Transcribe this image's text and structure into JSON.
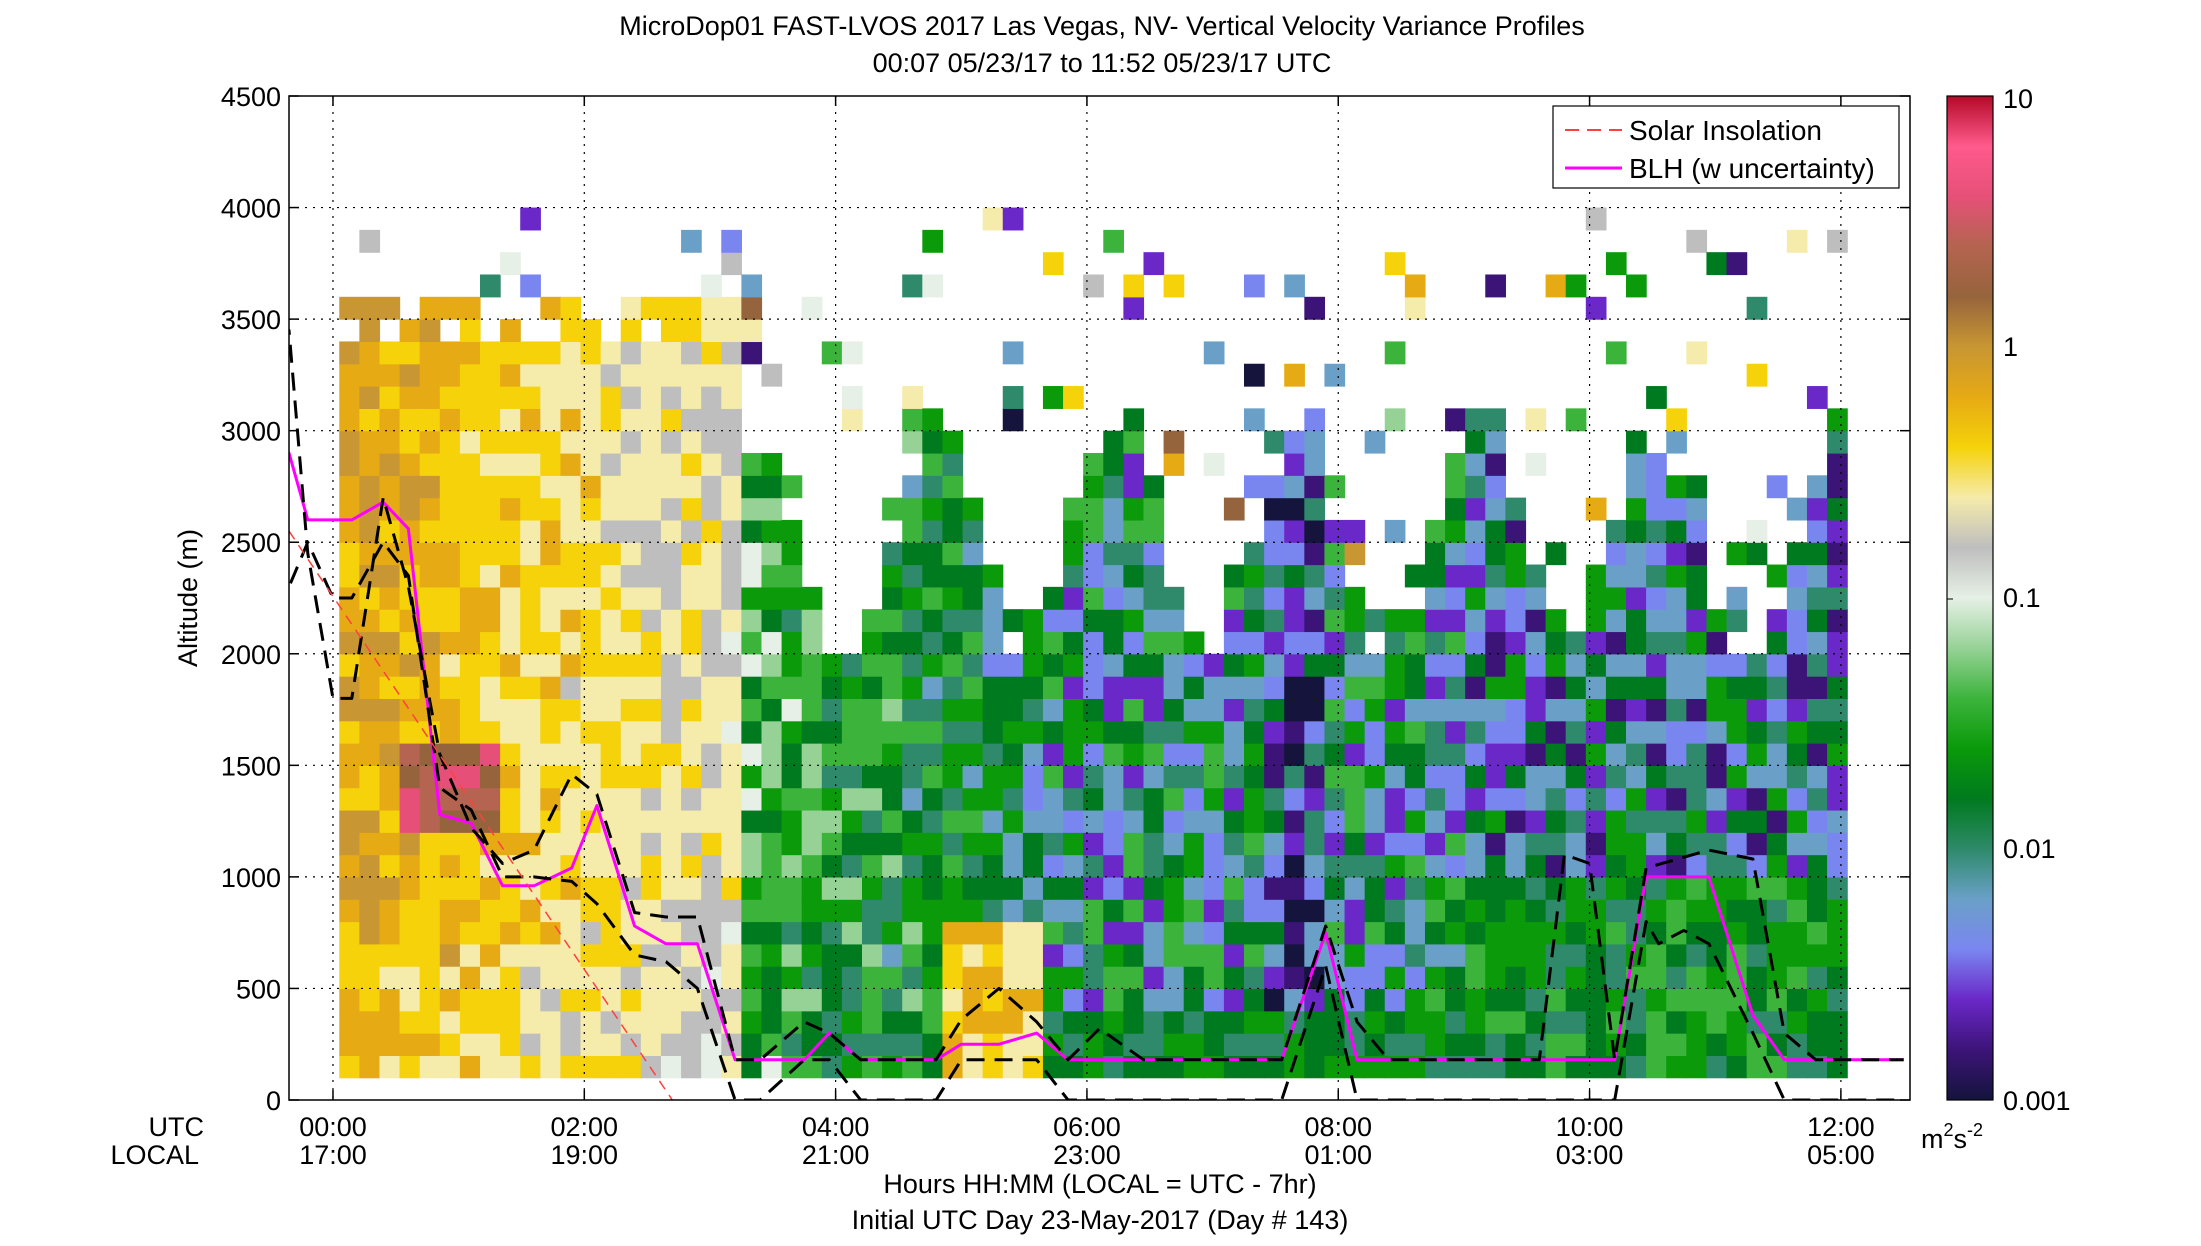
{
  "chart_data": {
    "type": "heatmap",
    "title": "MicroDop01 FAST-LVOS 2017 Las Vegas, NV- Vertical Velocity Variance Profiles",
    "subtitle": "00:07 05/23/17 to 11:52 05/23/17  UTC",
    "ylabel": "Altitude (m)",
    "xlabel": "Hours HH:MM  (LOCAL = UTC - 7hr)",
    "xlabel2": "Initial UTC Day 23-May-2017 (Day # 143)",
    "x_row_labels": [
      "UTC",
      "LOCAL"
    ],
    "xlim_hours": [
      -0.35,
      12.55
    ],
    "ylim": [
      0,
      4500
    ],
    "grid": true,
    "x_ticks": [
      {
        "h": 0,
        "utc": "00:00",
        "local": "17:00"
      },
      {
        "h": 2,
        "utc": "02:00",
        "local": "19:00"
      },
      {
        "h": 4,
        "utc": "04:00",
        "local": "21:00"
      },
      {
        "h": 6,
        "utc": "06:00",
        "local": "23:00"
      },
      {
        "h": 8,
        "utc": "08:00",
        "local": "01:00"
      },
      {
        "h": 10,
        "utc": "10:00",
        "local": "03:00"
      },
      {
        "h": 12,
        "utc": "12:00",
        "local": "05:00"
      }
    ],
    "y_ticks": [
      0,
      500,
      1000,
      1500,
      2000,
      2500,
      3000,
      3500,
      4000,
      4500
    ],
    "colorbar": {
      "scale": "log",
      "range": [
        0.001,
        10
      ],
      "ticks": [
        "0.001",
        "0.01",
        "0.1",
        "1",
        "10"
      ],
      "unit": "m2s-2",
      "unit_parts": [
        "m",
        "2",
        "s",
        "-2"
      ],
      "colors": [
        "#14143c",
        "#3c1478",
        "#6a28c8",
        "#7a86f0",
        "#6aa0c8",
        "#2e8a6a",
        "#007a1e",
        "#0a9a0a",
        "#3cb43c",
        "#96d296",
        "#e6f0e6",
        "#bebebe",
        "#f5ebaa",
        "#f5d20a",
        "#e6aa14",
        "#c89632",
        "#96643c",
        "#b46450",
        "#e65078",
        "#ff5a8c",
        "#b40a28"
      ]
    },
    "time_step_hours": 0.16,
    "alt_step_m": 100,
    "legend": {
      "placement": "top-right",
      "entries": [
        {
          "label": "Solar Insolation",
          "color": "#ff4040",
          "style": "dashed"
        },
        {
          "label": "BLH (w uncertainty)",
          "color": "#ff00ff",
          "style": "solid"
        }
      ]
    },
    "series": [
      {
        "name": "BLH (w uncertainty)",
        "color": "#ff00ff",
        "x": [
          -0.5,
          -0.35,
          -0.2,
          0.0,
          0.15,
          0.4,
          0.6,
          0.85,
          1.1,
          1.35,
          1.6,
          1.9,
          2.1,
          2.4,
          2.65,
          2.9,
          3.2,
          3.4,
          3.75,
          3.95,
          4.2,
          4.5,
          4.8,
          5.0,
          5.3,
          5.6,
          5.85,
          6.1,
          6.45,
          7.0,
          7.55,
          7.9,
          8.15,
          8.4,
          9.0,
          9.6,
          10.2,
          10.45,
          10.95,
          11.3,
          11.55,
          11.8,
          12.5
        ],
        "y": [
          2950,
          2900,
          2600,
          2600,
          2600,
          2680,
          2560,
          1280,
          1240,
          960,
          960,
          1040,
          1320,
          780,
          700,
          700,
          180,
          180,
          180,
          300,
          180,
          180,
          180,
          250,
          250,
          300,
          180,
          180,
          180,
          180,
          180,
          750,
          180,
          180,
          180,
          180,
          180,
          1000,
          1000,
          380,
          180,
          180,
          180
        ]
      },
      {
        "name": "",
        "color": "#000000",
        "x": [
          -0.5,
          -0.35,
          -0.2,
          0.0,
          0.15,
          0.4,
          0.6,
          0.85,
          1.1,
          1.35,
          1.6,
          1.9,
          2.1,
          2.4,
          2.65,
          2.9,
          3.2,
          3.4,
          3.75,
          3.95,
          4.2,
          4.5,
          4.8,
          5.0,
          5.3,
          5.6,
          5.85,
          6.1,
          6.45,
          7.0,
          7.55,
          7.9,
          8.15,
          8.4,
          9.0,
          9.6,
          9.8,
          10.0,
          10.2,
          10.45,
          10.95,
          11.3,
          11.55,
          11.8,
          12.5
        ],
        "y": [
          3150,
          3450,
          2450,
          1800,
          1800,
          2700,
          2300,
          1550,
          1220,
          1060,
          1120,
          1460,
          1370,
          840,
          820,
          820,
          180,
          180,
          350,
          300,
          180,
          180,
          180,
          360,
          500,
          350,
          180,
          320,
          180,
          180,
          180,
          780,
          350,
          180,
          180,
          180,
          1100,
          1060,
          180,
          1040,
          1120,
          1080,
          300,
          180,
          180
        ]
      },
      {
        "name": "",
        "color": "#000000",
        "x": [
          -0.5,
          -0.35,
          -0.2,
          0.0,
          0.15,
          0.4,
          0.6,
          0.85,
          1.1,
          1.35,
          1.6,
          1.9,
          2.1,
          2.4,
          2.65,
          2.9,
          3.2,
          3.4,
          3.75,
          3.95,
          4.2,
          4.5,
          4.8,
          5.0,
          5.3,
          5.6,
          5.85,
          6.1,
          6.45,
          7.0,
          7.55,
          7.9,
          8.15,
          8.4,
          9.0,
          9.6,
          10.2,
          10.45,
          10.55,
          10.75,
          10.95,
          11.3,
          11.55,
          11.8,
          12.5
        ],
        "y": [
          2650,
          2300,
          2500,
          2250,
          2250,
          2500,
          2350,
          1400,
          1300,
          1000,
          1000,
          980,
          880,
          650,
          620,
          500,
          0,
          0,
          180,
          180,
          0,
          0,
          0,
          180,
          180,
          180,
          0,
          0,
          0,
          0,
          0,
          600,
          0,
          0,
          0,
          0,
          0,
          800,
          700,
          760,
          700,
          300,
          0,
          0,
          0
        ]
      },
      {
        "name": "Solar Insolation",
        "color": "#ff4040",
        "x": [
          -0.35,
          2.7
        ],
        "y": [
          2550,
          0
        ]
      }
    ]
  }
}
